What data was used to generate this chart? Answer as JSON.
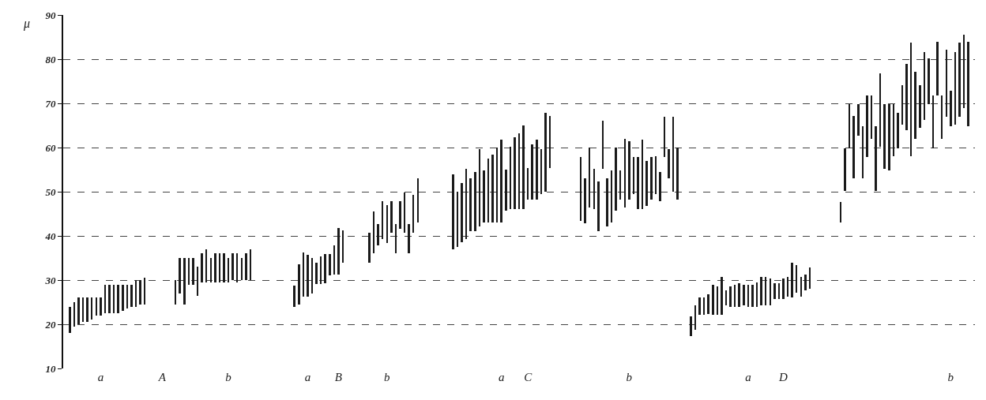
{
  "chart_data": {
    "type": "bar",
    "ylabel": "μ",
    "categories": [
      null,
      null,
      null,
      null,
      null,
      null,
      null,
      "a",
      null,
      null,
      null,
      null,
      null,
      null,
      null,
      null,
      null,
      null,
      null,
      null,
      null,
      "A",
      null,
      null,
      null,
      null,
      null,
      null,
      null,
      null,
      null,
      null,
      null,
      null,
      null,
      null,
      "b",
      null,
      null,
      null,
      null,
      null,
      null,
      null,
      null,
      null,
      null,
      null,
      null,
      null,
      null,
      null,
      null,
      null,
      "a",
      null,
      null,
      null,
      null,
      null,
      null,
      "B",
      null,
      null,
      null,
      null,
      null,
      null,
      null,
      null,
      null,
      null,
      "b",
      null,
      null,
      null,
      null,
      null,
      null,
      null,
      null,
      null,
      null,
      null,
      null,
      null,
      null,
      null,
      null,
      null,
      null,
      null,
      null,
      null,
      null,
      null,
      null,
      null,
      "a",
      null,
      null,
      null,
      null,
      null,
      "C",
      null,
      null,
      null,
      null,
      null,
      null,
      null,
      null,
      null,
      null,
      null,
      null,
      null,
      null,
      null,
      null,
      null,
      null,
      null,
      null,
      null,
      null,
      "b",
      null,
      null,
      null,
      null,
      null,
      null,
      null,
      null,
      null,
      null,
      null,
      null,
      null,
      null,
      null,
      null,
      null,
      null,
      null,
      null,
      null,
      null,
      null,
      null,
      null,
      null,
      "a",
      null,
      null,
      null,
      null,
      null,
      null,
      null,
      "D",
      null,
      null,
      null,
      null,
      null,
      null,
      null,
      null,
      null,
      null,
      null,
      null,
      null,
      null,
      null,
      null,
      null,
      null,
      null,
      null,
      null,
      null,
      null,
      null,
      null,
      null,
      null,
      null,
      null,
      null,
      null,
      null,
      null,
      null,
      null,
      null,
      null,
      "b",
      null,
      null,
      null,
      null
    ],
    "base": [
      18,
      19.5,
      20,
      20.5,
      20.5,
      21,
      22,
      22,
      22.5,
      22.5,
      22.5,
      22.5,
      23,
      23.5,
      24,
      24,
      24.5,
      24.5,
      null,
      null,
      null,
      null,
      null,
      null,
      24.5,
      27,
      24.5,
      29,
      29,
      26.5,
      29.5,
      29.5,
      29.5,
      29.5,
      29.5,
      29.5,
      29.5,
      30,
      29.5,
      30,
      30,
      30,
      null,
      null,
      null,
      null,
      null,
      null,
      null,
      null,
      null,
      24,
      24.4,
      26.3,
      26.3,
      27,
      29.1,
      29.1,
      29.3,
      31,
      31.2,
      31.2,
      34,
      null,
      null,
      null,
      null,
      null,
      34,
      36,
      37.8,
      39.3,
      38.4,
      40.7,
      36,
      41.6,
      40.7,
      36,
      40.7,
      43,
      null,
      null,
      null,
      null,
      null,
      null,
      null,
      37,
      37.5,
      38.5,
      39.2,
      41,
      41,
      42.2,
      43,
      43,
      43,
      43,
      43,
      45.8,
      46,
      46,
      46,
      46,
      48.2,
      48.2,
      48.2,
      49.4,
      50,
      55.4,
      null,
      null,
      null,
      null,
      null,
      null,
      43.4,
      42.8,
      46.4,
      46,
      41,
      55.1,
      42.2,
      43,
      45.8,
      48.2,
      46.4,
      48.2,
      49.4,
      46,
      46,
      46.7,
      48.2,
      49.4,
      47.9,
      57.8,
      53,
      50,
      48.2,
      null,
      null,
      17.3,
      18.8,
      22.1,
      22.1,
      22.4,
      22.1,
      22.1,
      22.1,
      24.2,
      23.9,
      23.9,
      23.9,
      24.2,
      23.9,
      23.9,
      23.9,
      24.2,
      24.2,
      24.2,
      25.7,
      25.7,
      25.7,
      26.2,
      26,
      27.1,
      26.2,
      27.7,
      28,
      null,
      null,
      null,
      null,
      null,
      null,
      43.1,
      50.1,
      59.9,
      53,
      62.7,
      53,
      57.8,
      62,
      50.1,
      60.2,
      55.1,
      54.8,
      58.1,
      59.9,
      65.1,
      63.9,
      58.1,
      62,
      64.5,
      66.3,
      69.9,
      59.9,
      71.7,
      62,
      66.9,
      64.8,
      65.1,
      66.9,
      69,
      64.8
    ],
    "values": [
      6,
      5.5,
      6,
      5.5,
      5.5,
      5,
      4,
      4,
      6.5,
      6.5,
      6.5,
      6.5,
      6,
      5.5,
      5,
      6,
      5.5,
      6,
      null,
      null,
      null,
      null,
      null,
      null,
      5.5,
      8,
      10.5,
      6,
      6,
      6.5,
      6.5,
      7.5,
      5.5,
      6.5,
      6.5,
      6.5,
      5.5,
      6,
      6.5,
      5,
      6,
      7,
      null,
      null,
      null,
      null,
      null,
      null,
      null,
      null,
      null,
      4.8,
      9.2,
      10,
      9.4,
      8,
      4.9,
      6.2,
      6.6,
      4.9,
      6.7,
      10.6,
      7.2,
      null,
      null,
      null,
      null,
      null,
      6.8,
      9.6,
      4.8,
      8.5,
      8.5,
      7.1,
      6.6,
      6.2,
      9.2,
      6.6,
      8.6,
      10,
      null,
      null,
      null,
      null,
      null,
      null,
      null,
      17,
      12.5,
      13.5,
      15.9,
      12,
      13.5,
      17.4,
      11.8,
      14.5,
      15.4,
      17,
      18.7,
      9.2,
      14.2,
      16.3,
      17.2,
      19,
      7.2,
      12.6,
      13.5,
      10.2,
      17.8,
      11.8,
      null,
      null,
      null,
      null,
      null,
      null,
      14.4,
      10.2,
      13.6,
      9.1,
      11.4,
      10.9,
      10.8,
      11.8,
      14.2,
      6.6,
      15.6,
      13.2,
      8.4,
      11.8,
      15.7,
      10.2,
      9.6,
      8.7,
      6.6,
      9.1,
      6.6,
      16.9,
      11.8,
      null,
      null,
      4.5,
      5.4,
      3.9,
      3.9,
      4.4,
      6.8,
      6.5,
      8.6,
      3.5,
      4.7,
      5,
      5.3,
      4.7,
      5,
      5,
      5.6,
      6.5,
      6.5,
      6.2,
      3.5,
      3.5,
      4.7,
      4.5,
      8,
      6.3,
      4.5,
      3.6,
      4.8,
      null,
      null,
      null,
      null,
      null,
      null,
      4.5,
      9.8,
      10,
      14.2,
      7.2,
      11.8,
      13.9,
      9.7,
      14.7,
      16.6,
      14.8,
      15.1,
      11.8,
      7.9,
      9,
      15,
      25.6,
      15.1,
      9.6,
      15.3,
      10.2,
      11.8,
      12.3,
      9.7,
      15.3,
      8.1,
      16.5,
      16.8,
      16.5,
      19.2
    ],
    "color": "#1a1a1a",
    "ylim": [
      10,
      90
    ],
    "yticks": [
      10,
      20,
      30,
      40,
      50,
      60,
      70,
      80,
      90
    ],
    "grid": "y"
  }
}
